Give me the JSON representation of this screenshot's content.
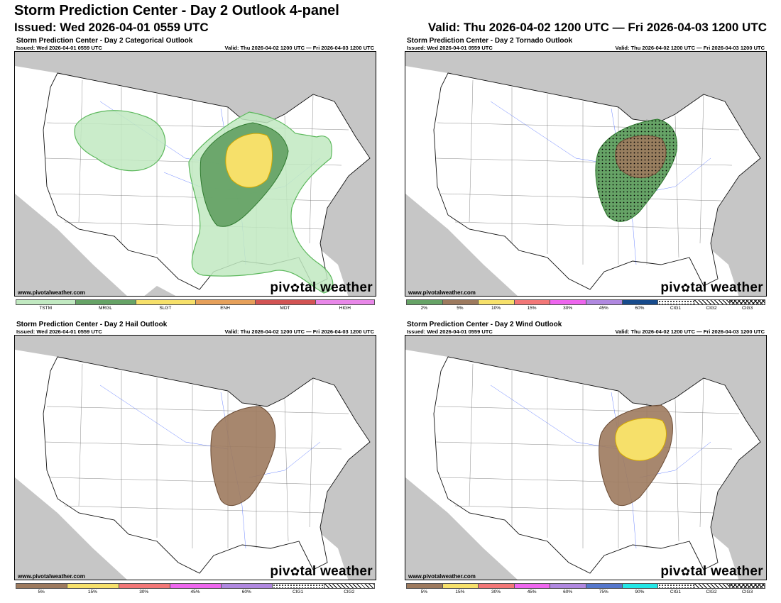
{
  "header": {
    "title": "Storm Prediction Center - Day 2 Outlook 4-panel",
    "issued": "Issued: Wed 2026-04-01 0559 UTC",
    "valid": "Valid: Thu 2026-04-02 1200 UTC — Fri 2026-04-03 1200 UTC"
  },
  "site": "www.pivotalweather.com",
  "brand": {
    "pre": "piv",
    "post": "tal weather"
  },
  "panel_issued": "Issued: Wed 2026-04-01 0559 UTC",
  "panel_valid": "Valid: Thu 2026-04-02 1200 UTC — Fri 2026-04-03 1200 UTC",
  "panels": [
    {
      "title": "Storm Prediction Center - Day 2 Categorical Outlook",
      "legend": [
        {
          "label": "TSTM",
          "color": "#c1e9c1"
        },
        {
          "label": "MRGL",
          "color": "#66a366"
        },
        {
          "label": "SLGT",
          "color": "#f6e06a"
        },
        {
          "label": "ENH",
          "color": "#e6a05a"
        },
        {
          "label": "MDT",
          "color": "#d25454"
        },
        {
          "label": "HIGH",
          "color": "#e887e8"
        }
      ]
    },
    {
      "title": "Storm Prediction Center - Day 2 Tornado Outlook",
      "legend": [
        {
          "label": "2%",
          "color": "#66a366"
        },
        {
          "label": "5%",
          "color": "#9d7a5e"
        },
        {
          "label": "10%",
          "color": "#f6e06a"
        },
        {
          "label": "15%",
          "color": "#f27777"
        },
        {
          "label": "30%",
          "color": "#ee66ee"
        },
        {
          "label": "45%",
          "color": "#b088e0"
        },
        {
          "label": "60%",
          "color": "#174b8c"
        },
        {
          "label": "CIG1",
          "pattern": "dotted"
        },
        {
          "label": "CIG2",
          "pattern": "hatch"
        },
        {
          "label": "CIG3",
          "pattern": "xhatch"
        }
      ]
    },
    {
      "title": "Storm Prediction Center - Day 2 Hail Outlook",
      "legend": [
        {
          "label": "5%",
          "color": "#9d7a5e"
        },
        {
          "label": "15%",
          "color": "#f6e06a"
        },
        {
          "label": "30%",
          "color": "#f27777"
        },
        {
          "label": "45%",
          "color": "#ee66ee"
        },
        {
          "label": "60%",
          "color": "#b088e0"
        },
        {
          "label": "CIG1",
          "pattern": "dotted"
        },
        {
          "label": "CIG2",
          "pattern": "hatch"
        }
      ]
    },
    {
      "title": "Storm Prediction Center - Day 2 Wind Outlook",
      "legend": [
        {
          "label": "5%",
          "color": "#9d7a5e"
        },
        {
          "label": "15%",
          "color": "#f6e06a"
        },
        {
          "label": "30%",
          "color": "#f27777"
        },
        {
          "label": "45%",
          "color": "#ee66ee"
        },
        {
          "label": "60%",
          "color": "#b088e0"
        },
        {
          "label": "75%",
          "color": "#5577cc"
        },
        {
          "label": "90%",
          "color": "#22e6e6"
        },
        {
          "label": "CIG1",
          "pattern": "dotted"
        },
        {
          "label": "CIG2",
          "pattern": "hatch"
        },
        {
          "label": "CIG3",
          "pattern": "xhatch"
        }
      ]
    }
  ]
}
